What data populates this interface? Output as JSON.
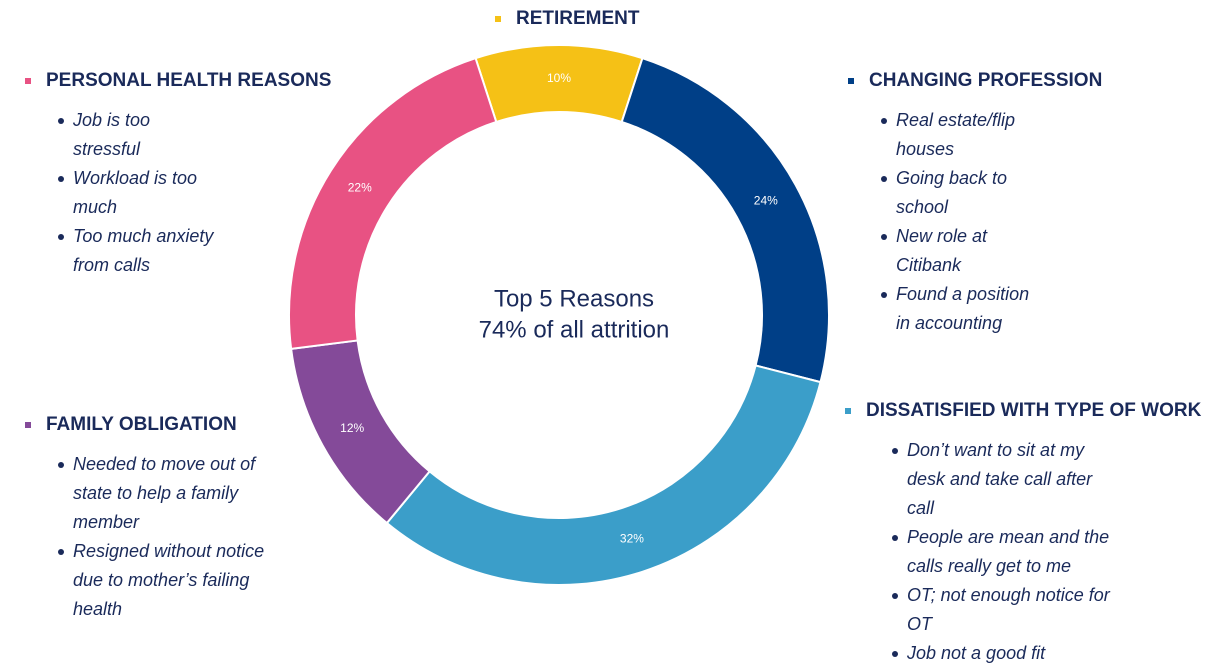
{
  "chart_data": {
    "type": "donut",
    "center_text": [
      "Top 5 Reasons",
      "74% of all attrition"
    ],
    "categories": [
      "RETIREMENT",
      "CHANGING PROFESSION",
      "DISSATISFIED WITH TYPE OF WORK",
      "FAMILY OBLIGATION",
      "PERSONAL HEALTH REASONS"
    ],
    "values": [
      10,
      24,
      32,
      12,
      22
    ],
    "value_labels": [
      "10%",
      "24%",
      "32%",
      "12%",
      "22%"
    ],
    "colors": [
      "#f5c116",
      "#003f87",
      "#3b9ec9",
      "#844a99",
      "#e85283"
    ],
    "notes": [
      [],
      [
        "Real estate/flip houses",
        "Going back to school",
        "New role at Citibank",
        "Found a position in accounting"
      ],
      [
        "Don’t want to sit at my desk and take call after call",
        "People are mean and the calls really get to me",
        "OT; not enough notice for OT",
        "Job not a good fit"
      ],
      [
        "Needed to move out of state to help a family member",
        "Resigned without notice due to mother’s failing health"
      ],
      [
        "Job is too stressful",
        "Workload is too much",
        "Too much anxiety from calls"
      ]
    ]
  }
}
